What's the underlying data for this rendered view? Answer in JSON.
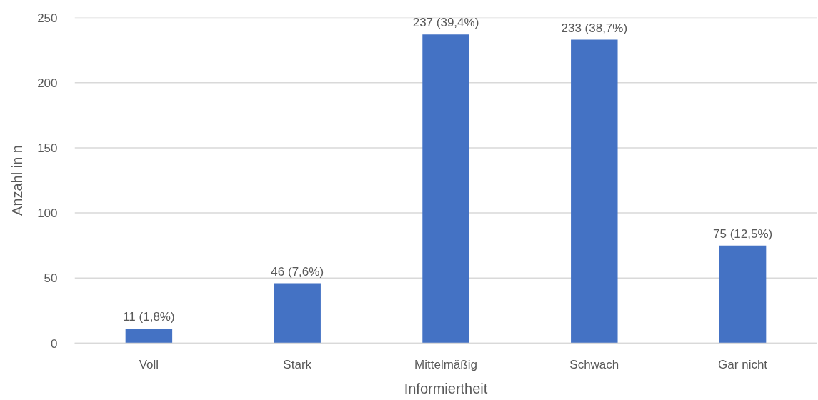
{
  "chart_data": {
    "type": "bar",
    "xlabel": "Informiertheit",
    "ylabel": "Anzahl in n",
    "categories": [
      "Voll",
      "Stark",
      "Mittelmäßig",
      "Schwach",
      "Gar nicht"
    ],
    "values": [
      11,
      46,
      237,
      233,
      75
    ],
    "color": "#4472c4",
    "value_labels": [
      "11 (1,8%)",
      "46 (7,6%)",
      "237 (39,4%)",
      "233 (38,7%)",
      "75 (12,5%)"
    ],
    "ylim": [
      0,
      250
    ],
    "yticks": [
      0,
      50,
      100,
      150,
      200,
      250
    ],
    "grid": "y"
  }
}
